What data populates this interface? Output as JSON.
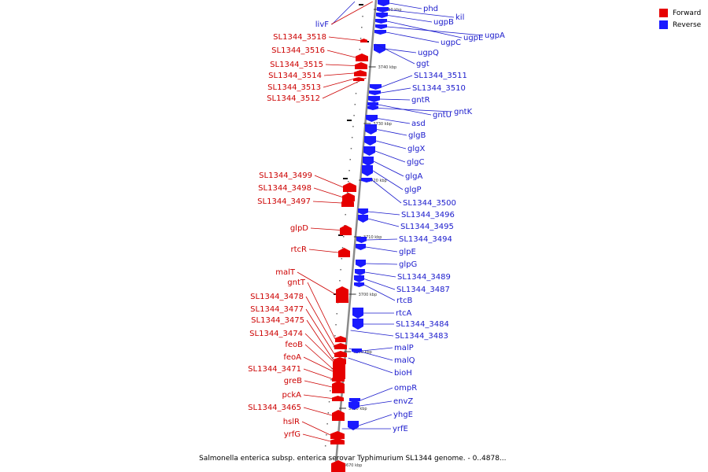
{
  "colors": {
    "forward": "#e60000",
    "reverse": "#1a1aff",
    "forward_label": "#cc0000",
    "reverse_label": "#1a1acc",
    "backbone": "#8a8a8a"
  },
  "legend": {
    "forward": "Forward",
    "reverse": "Reverse"
  },
  "caption": "Salmonella enterica subsp. enterica serovar Typhimurium SL1344 genome. - 0..4878...",
  "scale_marks": [
    "3750 kbp",
    "3740 kbp",
    "3730 kbp",
    "3720 kbp",
    "3710 kbp",
    "3700 kbp",
    "3690 kbp",
    "3680 kbp",
    "3670 kbp"
  ],
  "forward_genes": [
    "livF",
    "SL1344_3518",
    "SL1344_3516",
    "SL1344_3515",
    "SL1344_3514",
    "SL1344_3513",
    "SL1344_3512",
    "SL1344_3499",
    "SL1344_3498",
    "SL1344_3497",
    "glpD",
    "rtcR",
    "malT",
    "gntT",
    "SL1344_3478",
    "SL1344_3477",
    "SL1344_3475",
    "SL1344_3474",
    "feoB",
    "feoA",
    "SL1344_3471",
    "greB",
    "pckA",
    "SL1344_3465",
    "hslR",
    "yrfG"
  ],
  "reverse_genes": [
    "phd",
    "kil",
    "ugpB",
    "ugpE",
    "ugpA",
    "ugpC",
    "ugpQ",
    "ggt",
    "SL1344_3511",
    "SL1344_3510",
    "gntR",
    "gntU",
    "gntK",
    "asd",
    "glgB",
    "glgX",
    "glgC",
    "glgA",
    "glgP",
    "SL1344_3500",
    "SL1344_3496",
    "SL1344_3495",
    "SL1344_3494",
    "glpE",
    "glpG",
    "SL1344_3489",
    "SL1344_3487",
    "rtcB",
    "rtcA",
    "SL1344_3484",
    "SL1344_3483",
    "malP",
    "malQ",
    "bioH",
    "ompR",
    "envZ",
    "yhgE",
    "yrfE"
  ]
}
